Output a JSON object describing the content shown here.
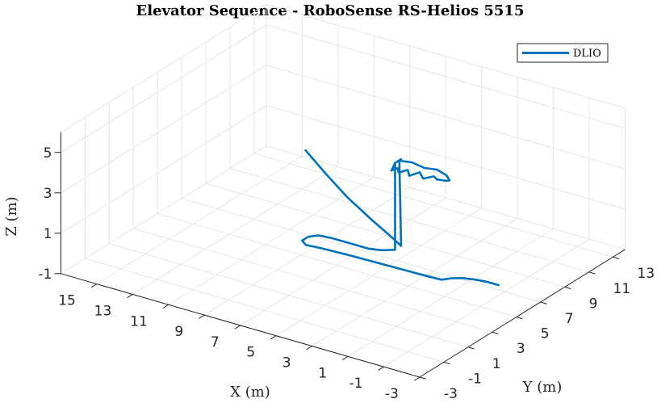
{
  "chart_data": {
    "type": "line",
    "title": "Elevator Sequence - RoboSense RS-Helios 5515",
    "xlabel": "X (m)",
    "ylabel": "Y (m)",
    "zlabel": "Z (m)",
    "x_ticks": [
      -3,
      -1,
      1,
      3,
      5,
      7,
      9,
      11,
      13,
      15
    ],
    "y_ticks": [
      -3,
      -1,
      1,
      3,
      5,
      7,
      9,
      11,
      13
    ],
    "z_ticks": [
      -1,
      1,
      3,
      5
    ],
    "xlim": [
      -3,
      17
    ],
    "ylim": [
      -3,
      14
    ],
    "zlim": [
      -1,
      6
    ],
    "grid": true,
    "legend": {
      "position": "top-right",
      "entries": [
        "DLIO"
      ]
    },
    "series": [
      {
        "name": "DLIO",
        "color": "#0072BD",
        "points": [
          [
            -1.6,
            5.6,
            0.0
          ],
          [
            -1.0,
            5.6,
            0.0
          ],
          [
            -0.4,
            5.5,
            0.0
          ],
          [
            0.2,
            5.3,
            0.0
          ],
          [
            0.6,
            5.0,
            0.0
          ],
          [
            0.9,
            4.6,
            0.0
          ],
          [
            1.6,
            4.55,
            0.0
          ],
          [
            3.0,
            4.5,
            0.0
          ],
          [
            4.6,
            4.45,
            0.0
          ],
          [
            6.0,
            4.4,
            0.0
          ],
          [
            7.4,
            4.3,
            0.0
          ],
          [
            8.2,
            4.2,
            0.0
          ],
          [
            8.6,
            4.5,
            0.0
          ],
          [
            8.6,
            5.0,
            0.0
          ],
          [
            8.3,
            5.4,
            0.0
          ],
          [
            7.6,
            5.5,
            0.0
          ],
          [
            7.0,
            5.5,
            0.0
          ],
          [
            5.6,
            5.5,
            0.0
          ],
          [
            5.0,
            5.7,
            0.0
          ],
          [
            4.5,
            6.1,
            0.0
          ],
          [
            4.5,
            6.1,
            4.3
          ],
          [
            4.5,
            6.6,
            4.3
          ],
          [
            4.6,
            6.6,
            4.2
          ],
          [
            4.5,
            6.6,
            0.0
          ],
          [
            5.3,
            7.1,
            0.0
          ],
          [
            7.2,
            8.2,
            0.0
          ],
          [
            9.5,
            9.6,
            0.0
          ],
          [
            11.8,
            11.2,
            0.0
          ],
          [
            14.0,
            12.8,
            0.0
          ]
        ]
      },
      {
        "name": "",
        "color": "#0072BD",
        "points": [
          [
            4.6,
            6.6,
            4.2
          ],
          [
            3.9,
            6.6,
            4.3
          ],
          [
            3.2,
            6.6,
            4.2
          ],
          [
            2.5,
            6.6,
            4.3
          ],
          [
            1.9,
            6.5,
            4.2
          ],
          [
            1.6,
            6.3,
            4.1
          ],
          [
            1.6,
            6.0,
            4.2
          ],
          [
            1.9,
            5.7,
            4.3
          ],
          [
            2.2,
            5.9,
            4.3
          ],
          [
            2.6,
            5.6,
            4.2
          ],
          [
            3.0,
            5.9,
            4.3
          ],
          [
            3.3,
            5.5,
            4.2
          ],
          [
            3.6,
            5.8,
            4.3
          ],
          [
            3.9,
            5.5,
            4.2
          ],
          [
            4.1,
            5.7,
            4.3
          ],
          [
            4.3,
            5.5,
            4.2
          ],
          [
            4.5,
            6.1,
            4.3
          ]
        ]
      }
    ]
  }
}
